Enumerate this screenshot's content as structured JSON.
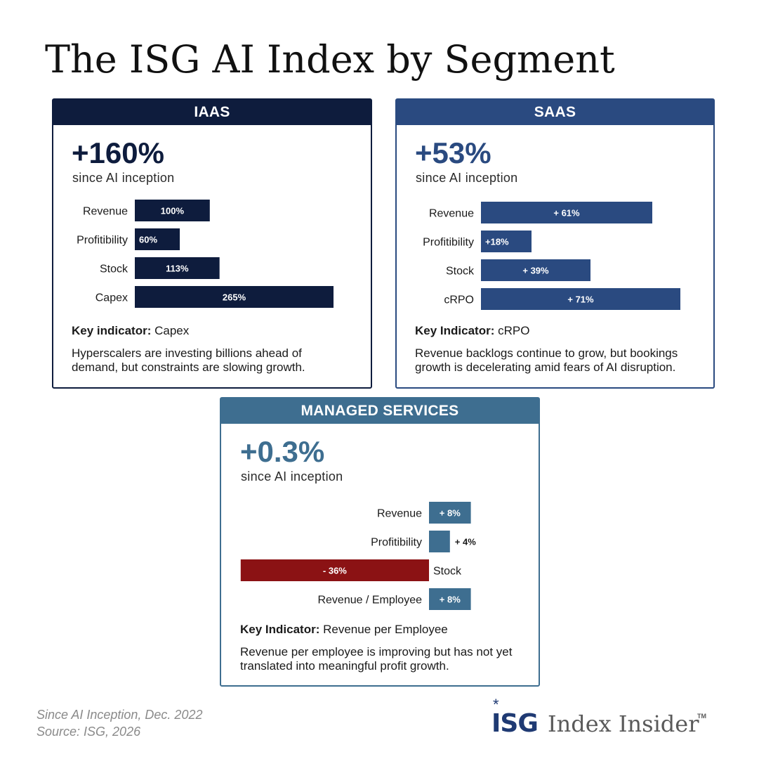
{
  "title": "The ISG AI Index by Segment",
  "colors": {
    "iaas": "#0e1c3d",
    "saas": "#2a4a80",
    "managed": "#3e6e90",
    "negative": "#8b1214",
    "logo": "#1f3a73"
  },
  "chart_data": [
    {
      "type": "bar",
      "title": "IAAS",
      "headline": "+160%",
      "subheadline": "since AI inception",
      "categories": [
        "Revenue",
        "Profitibility",
        "Stock",
        "Capex"
      ],
      "values": [
        100,
        60,
        113,
        265
      ],
      "value_labels": [
        "100%",
        "60%",
        "113%",
        "265%"
      ],
      "key_indicator_label": "Key indicator:",
      "key_indicator_value": "Capex",
      "description": "Hyperscalers are investing billions ahead of demand, but constraints are slowing growth."
    },
    {
      "type": "bar",
      "title": "SAAS",
      "headline": "+53%",
      "subheadline": "since AI inception",
      "categories": [
        "Revenue",
        "Profitibility",
        "Stock",
        "cRPO"
      ],
      "values": [
        61,
        18,
        39,
        71
      ],
      "value_labels": [
        "+ 61%",
        "+18%",
        "+ 39%",
        "+ 71%"
      ],
      "key_indicator_label": "Key Indicator:",
      "key_indicator_value": "cRPO",
      "description": "Revenue backlogs continue to grow, but bookings growth is decelerating amid fears of AI disruption."
    },
    {
      "type": "bar",
      "title": "MANAGED SERVICES",
      "headline": "+0.3%",
      "subheadline": "since AI inception",
      "categories": [
        "Revenue",
        "Profitibility",
        "Stock",
        "Revenue / Employee"
      ],
      "values": [
        8,
        4,
        -36,
        8
      ],
      "value_labels": [
        "+ 8%",
        "+ 4%",
        "- 36%",
        "+ 8%"
      ],
      "key_indicator_label": "Key Indicator:",
      "key_indicator_value": "Revenue per Employee",
      "description": "Revenue per employee is improving but has not yet translated into meaningful profit growth."
    }
  ],
  "footnote": {
    "line1": "Since AI Inception, Dec. 2022",
    "line2": "Source: ISG, 2026"
  },
  "logo": {
    "brand": "ISG",
    "star": "*",
    "product": "Index Insider",
    "tm": "TM"
  }
}
